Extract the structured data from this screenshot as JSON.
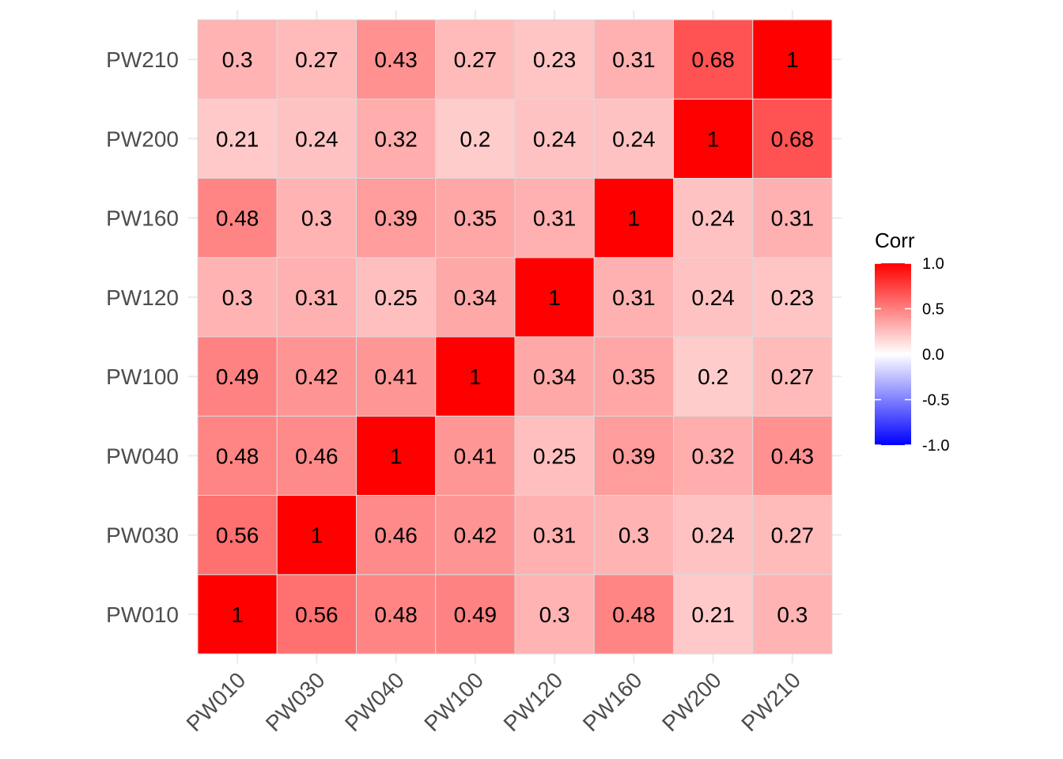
{
  "chart_data": {
    "type": "heatmap",
    "title": "",
    "xlabel": "",
    "ylabel": "",
    "x_categories": [
      "PW010",
      "PW030",
      "PW040",
      "PW100",
      "PW120",
      "PW160",
      "PW200",
      "PW210"
    ],
    "y_categories": [
      "PW010",
      "PW030",
      "PW040",
      "PW100",
      "PW120",
      "PW160",
      "PW200",
      "PW210"
    ],
    "matrix": [
      [
        "1",
        "0.56",
        "0.48",
        "0.49",
        "0.3",
        "0.48",
        "0.21",
        "0.3"
      ],
      [
        "0.56",
        "1",
        "0.46",
        "0.42",
        "0.31",
        "0.3",
        "0.24",
        "0.27"
      ],
      [
        "0.48",
        "0.46",
        "1",
        "0.41",
        "0.25",
        "0.39",
        "0.32",
        "0.43"
      ],
      [
        "0.49",
        "0.42",
        "0.41",
        "1",
        "0.34",
        "0.35",
        "0.2",
        "0.27"
      ],
      [
        "0.3",
        "0.31",
        "0.25",
        "0.34",
        "1",
        "0.31",
        "0.24",
        "0.23"
      ],
      [
        "0.48",
        "0.3",
        "0.39",
        "0.35",
        "0.31",
        "1",
        "0.24",
        "0.31"
      ],
      [
        "0.21",
        "0.24",
        "0.32",
        "0.2",
        "0.24",
        "0.24",
        "1",
        "0.68"
      ],
      [
        "0.3",
        "0.27",
        "0.43",
        "0.27",
        "0.23",
        "0.31",
        "0.68",
        "1"
      ]
    ],
    "legend": {
      "title": "Corr",
      "ticks": [
        "1.0",
        "0.5",
        "0.0",
        "-0.5",
        "-1.0"
      ],
      "range": [
        -1,
        1
      ],
      "low_color": "#0000ff",
      "mid_color": "#ffffff",
      "high_color": "#ff0000"
    },
    "grid": true
  }
}
